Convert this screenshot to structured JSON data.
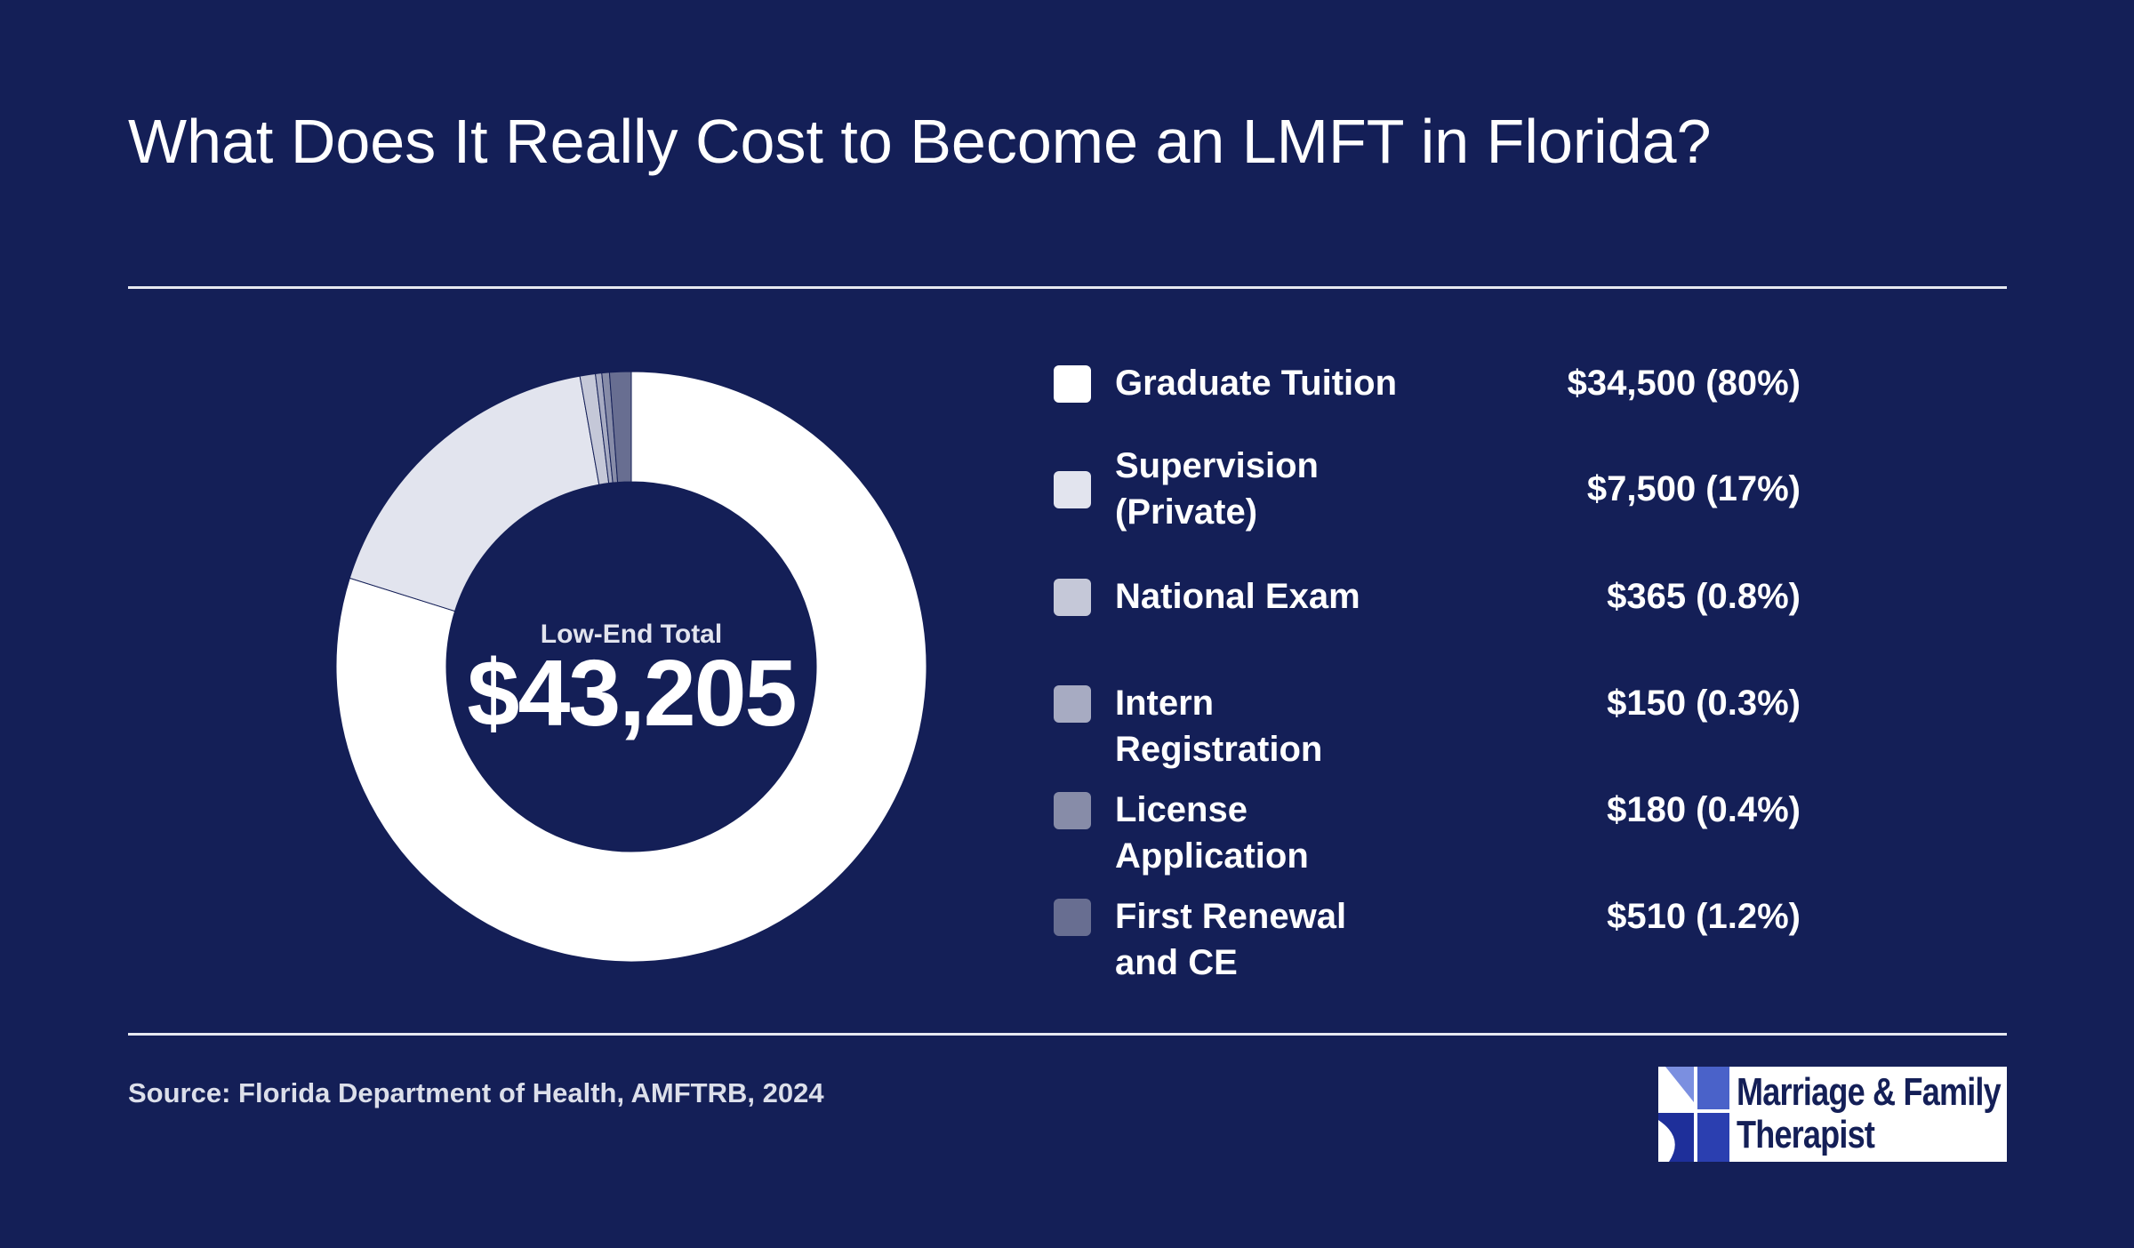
{
  "title": "What Does It Really Cost to Become an LMFT in Florida?",
  "center": {
    "label": "Low-End Total",
    "total": "$43,205"
  },
  "legend": [
    {
      "label": "Graduate Tuition",
      "value": "$34,500 (80%)",
      "color": "#ffffff"
    },
    {
      "label": "Supervision (Private)",
      "value": "$7,500 (17%)",
      "color": "#e2e4ee"
    },
    {
      "label": "National Exam",
      "value": "$365 (0.8%)",
      "color": "#c5c8d8"
    },
    {
      "label": "Intern Registration",
      "value": "$150 (0.3%)",
      "color": "#a7abc2"
    },
    {
      "label": "License Application",
      "value": "$180 (0.4%)",
      "color": "#878ca8"
    },
    {
      "label": "First Renewal and CE",
      "value": "$510 (1.2%)",
      "color": "#686e91"
    }
  ],
  "chart_data": {
    "type": "pie",
    "donut": true,
    "categories": [
      "Graduate Tuition",
      "Supervision (Private)",
      "National Exam",
      "Intern Registration",
      "License Application",
      "First Renewal and CE"
    ],
    "values": [
      34500,
      7500,
      365,
      150,
      180,
      510
    ],
    "colors": [
      "#ffffff",
      "#e2e4ee",
      "#c5c8d8",
      "#a7abc2",
      "#878ca8",
      "#686e91"
    ],
    "total": 43205,
    "direction": "clockwise from top"
  },
  "source": "Source: Florida Department of Health, AMFTRB, 2024",
  "logo": {
    "line1": "Marriage & Family",
    "line2": "Therapist"
  }
}
